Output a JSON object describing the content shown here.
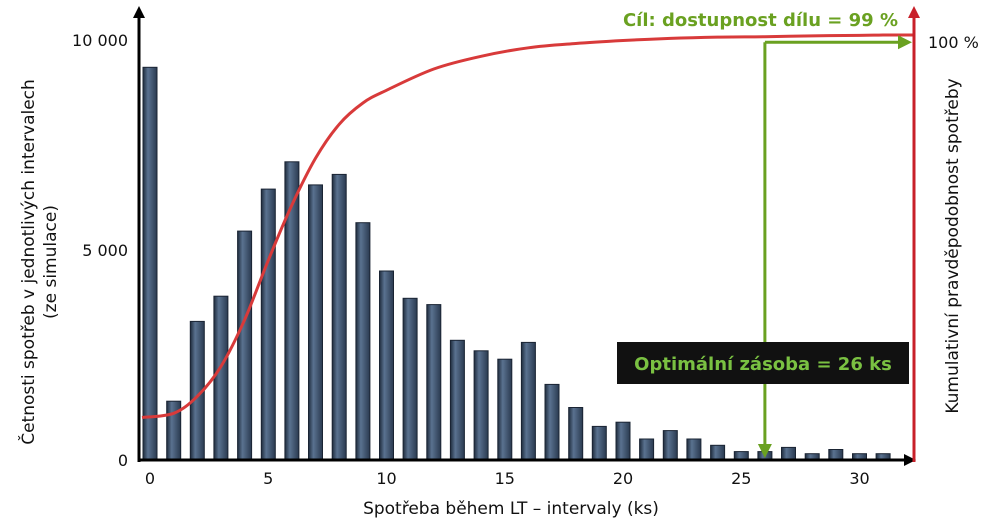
{
  "chart_data": {
    "type": "bar",
    "x": [
      0,
      1,
      2,
      3,
      4,
      5,
      6,
      7,
      8,
      9,
      10,
      11,
      12,
      13,
      14,
      15,
      16,
      17,
      18,
      19,
      20,
      21,
      22,
      23,
      24,
      25,
      26,
      27,
      28,
      29,
      30,
      31
    ],
    "values": [
      9350,
      1400,
      3300,
      3900,
      5450,
      6450,
      7100,
      6550,
      6800,
      5650,
      4500,
      3850,
      3700,
      2850,
      2600,
      2400,
      2800,
      1800,
      1250,
      800,
      900,
      500,
      700,
      500,
      350,
      200,
      200,
      300,
      150,
      250,
      150,
      150
    ],
    "cumulative_curve": {
      "name": "Kumulativní pravděpodobnost spotřeby",
      "x": [
        0,
        1,
        2,
        3,
        4,
        5,
        6,
        7,
        8,
        9,
        10,
        12,
        14,
        16,
        18,
        20,
        22,
        24,
        26,
        28,
        30,
        31
      ],
      "y_percent": [
        10,
        11,
        15,
        22,
        33,
        47,
        60,
        71,
        79,
        84,
        87,
        92,
        95,
        97,
        98,
        98.7,
        99.2,
        99.5,
        99.6,
        99.8,
        99.9,
        100
      ]
    },
    "xlim": [
      -0.5,
      32
    ],
    "ylim": [
      0,
      10200
    ],
    "x_ticks": [
      "0",
      "5",
      "10",
      "15",
      "20",
      "25",
      "30"
    ],
    "y_ticks": [
      "0",
      "5 000",
      "10 000"
    ],
    "xlabel": "Spotřeba během LT – intervaly (ks)",
    "ylabel_lines": [
      "Četnosti spotřeb v jednotlivých intervalech",
      "(ze simulace)"
    ],
    "y2label": "Kumulativní pravděpodobnost spotřeby",
    "y2_tick": "100 %",
    "target_label": "Cíl: dostupnost dílu = 99 %",
    "optimal_label": "Optimální zásoba = 26 ks",
    "optimal_x": 26,
    "target_percent": 99,
    "colors": {
      "bar": "#3f5470",
      "bar_edge": "#1a2433",
      "curve": "#d83a3a",
      "green": "#6aa121",
      "box_bg": "#111111",
      "box_text": "#7ac142",
      "right_axis": "#c8202a"
    }
  }
}
